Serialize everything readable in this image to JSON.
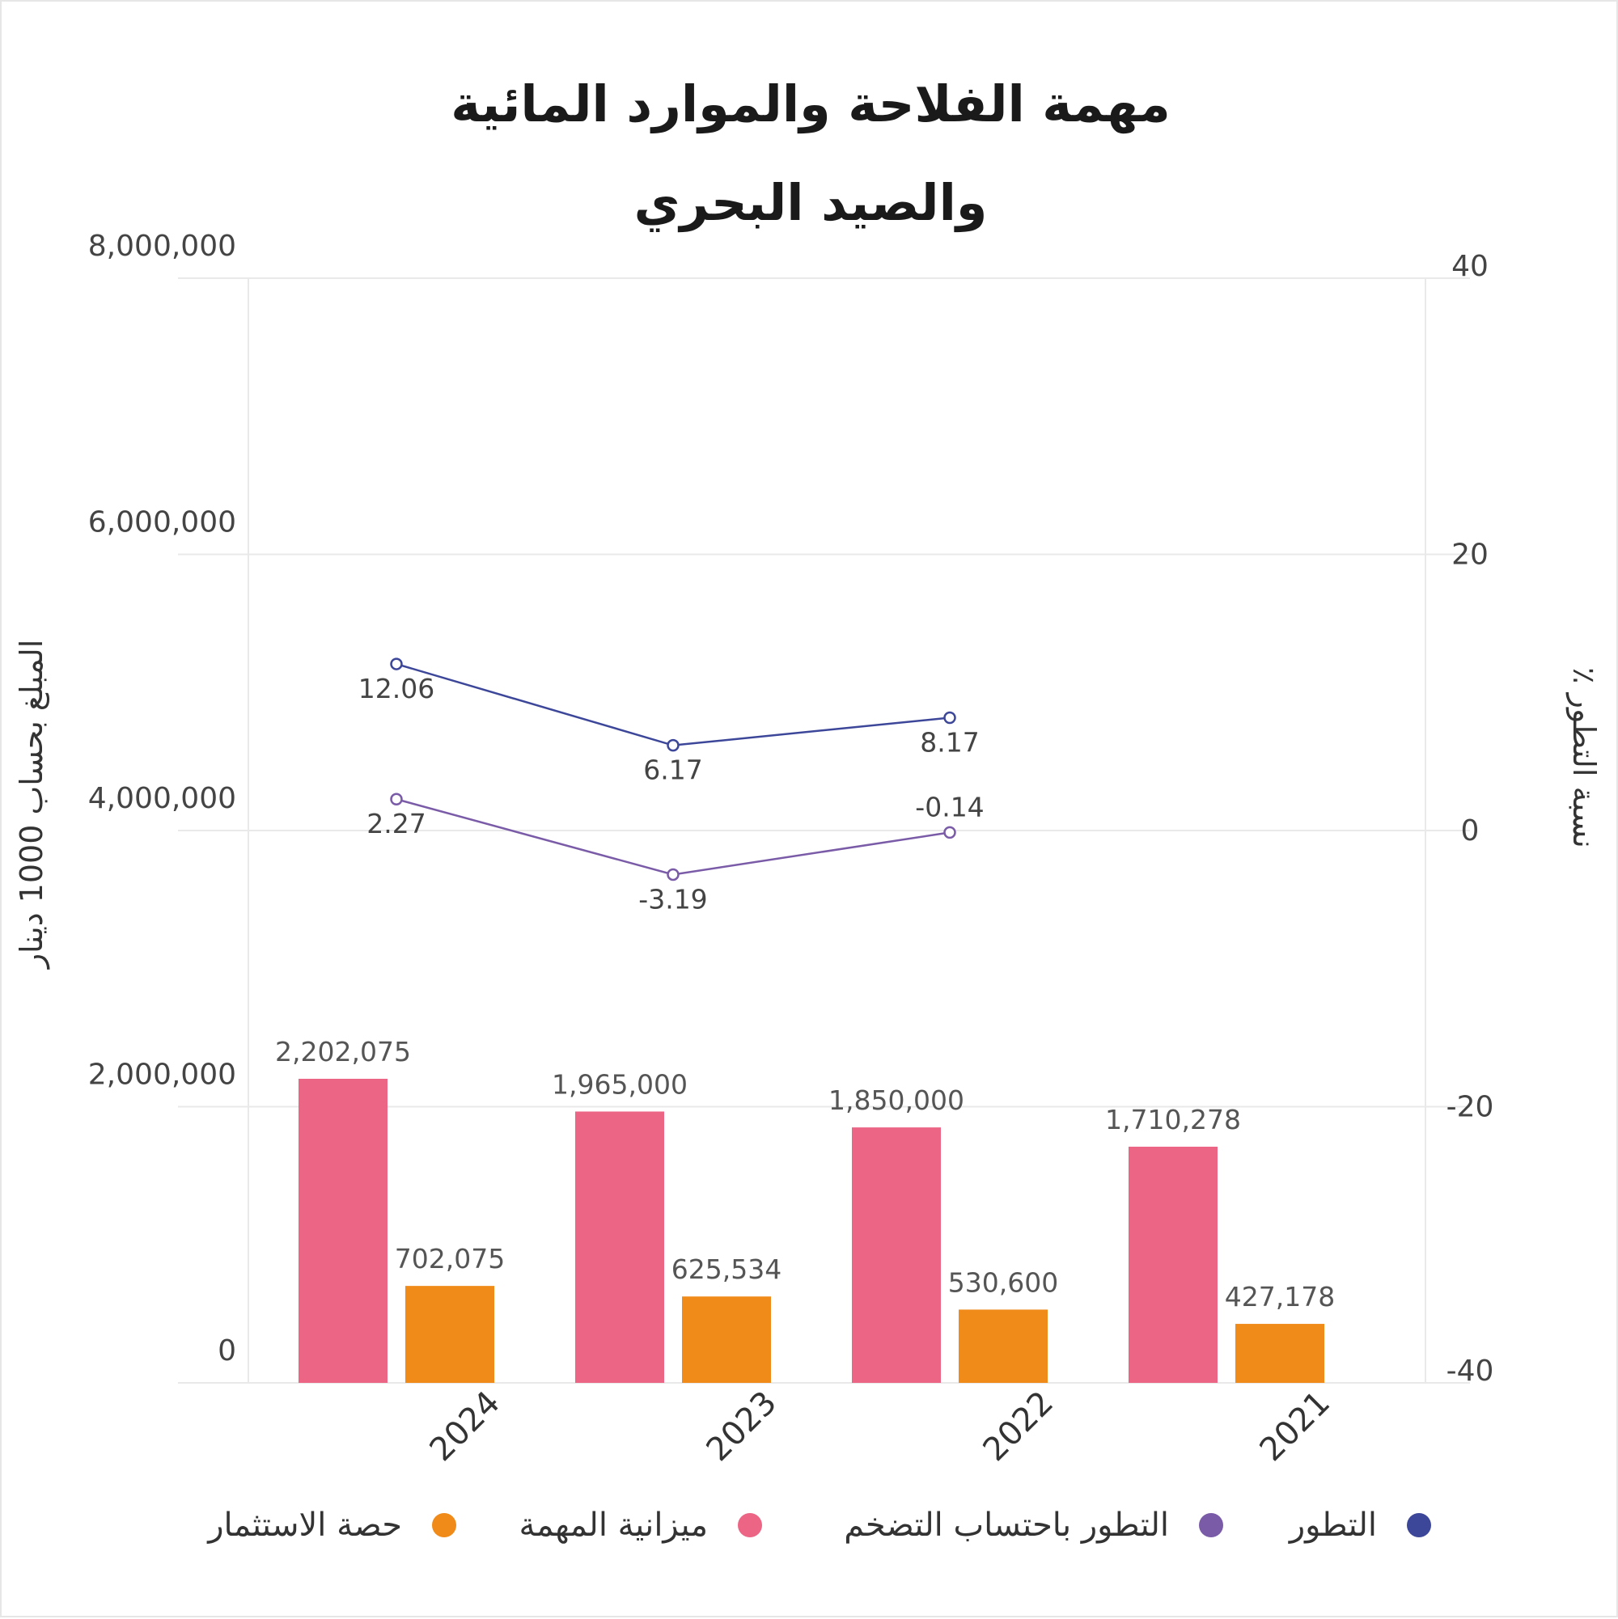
{
  "chart_data": {
    "type": "bar",
    "title_lines": [
      "مهمة الفلاحة والموارد المائية",
      "والصيد البحري"
    ],
    "categories": [
      "2024",
      "2023",
      "2022",
      "2021"
    ],
    "ylabel_left": "المبلغ بحساب 1000 دينار",
    "ylabel_right": "٪ نسبة التطور",
    "ylim_left": [
      0,
      8000000
    ],
    "ylim_right": [
      -40,
      40
    ],
    "yticks_left": [
      "0",
      "2,000,000",
      "4,000,000",
      "6,000,000",
      "8,000,000"
    ],
    "yticks_right": [
      "-40",
      "-20",
      "0",
      "20",
      "40"
    ],
    "grid": true,
    "legend_position": "bottom",
    "bar_series": [
      {
        "name": "ميزانية المهمة",
        "color": "#ec6585",
        "values": [
          2202075,
          1965000,
          1850000,
          1710278
        ],
        "labels": [
          "2,202,075",
          "1,965,000",
          "1,850,000",
          "1,710,278"
        ]
      },
      {
        "name": "حصة الاستثمار",
        "color": "#f08a19",
        "values": [
          702075,
          625534,
          530600,
          427178
        ],
        "labels": [
          "702,075",
          "625,534",
          "530,600",
          "427,178"
        ]
      }
    ],
    "line_series": [
      {
        "name": "التطور",
        "color": "#3d479a",
        "axis": "right",
        "values": [
          12.06,
          6.17,
          8.17,
          null
        ],
        "labels": [
          "12.06",
          "6.17",
          "8.17",
          ""
        ]
      },
      {
        "name": "التطور باحتساب التضخم",
        "color": "#7a5ba8",
        "axis": "right",
        "values": [
          2.27,
          -3.19,
          -0.14,
          null
        ],
        "labels": [
          "2.27",
          "-3.19",
          "-0.14",
          ""
        ]
      }
    ],
    "legend": [
      {
        "name": "التطور",
        "color": "#3d479a"
      },
      {
        "name": "التطور باحتساب التضخم",
        "color": "#7a5ba8"
      },
      {
        "name": "ميزانية المهمة",
        "color": "#ec6585"
      },
      {
        "name": "حصة الاستثمار",
        "color": "#f08a19"
      }
    ]
  }
}
